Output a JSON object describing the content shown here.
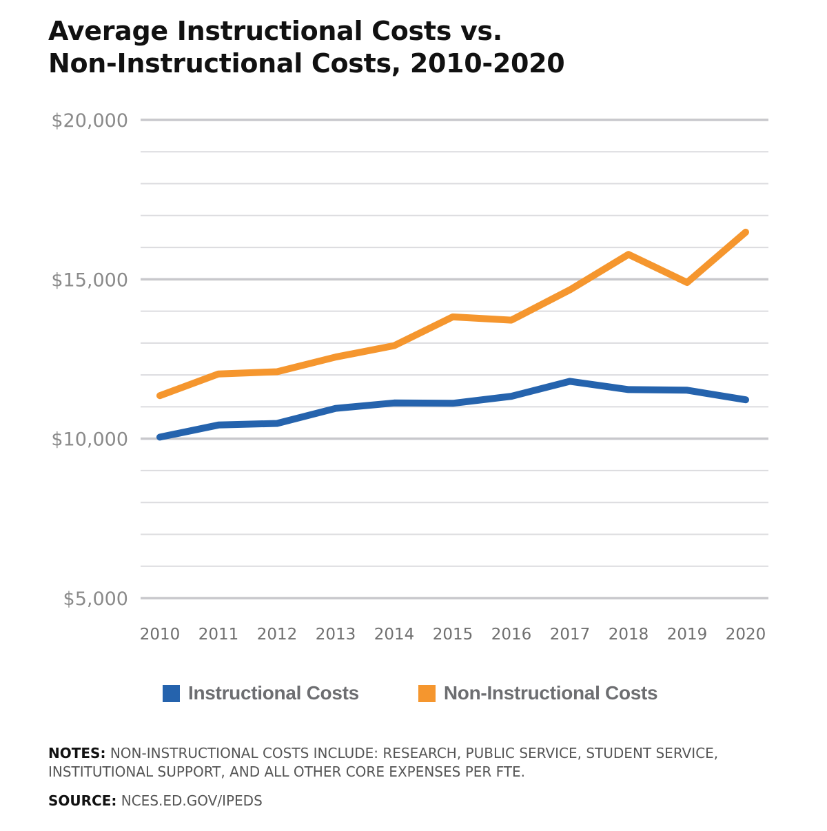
{
  "title_line1": "Average Instructional Costs vs.",
  "title_line2": "Non-Instructional Costs, 2010-2020",
  "colors": {
    "instructional": "#2563ad",
    "non_instructional": "#f5962e",
    "major_grid": "#c8c8cc",
    "minor_grid": "#dcdcdf"
  },
  "chart_data": {
    "type": "line",
    "title": "Average Instructional Costs vs. Non-Instructional Costs, 2010-2020",
    "xlabel": "",
    "ylabel": "",
    "categories": [
      "2010",
      "2011",
      "2012",
      "2013",
      "2014",
      "2015",
      "2016",
      "2017",
      "2018",
      "2019",
      "2020"
    ],
    "series": [
      {
        "name": "Instructional Costs",
        "color": "#2563ad",
        "values": [
          10050,
          10430,
          10480,
          10950,
          11120,
          11110,
          11330,
          11800,
          11540,
          11520,
          11220
        ]
      },
      {
        "name": "Non-Instructional Costs",
        "color": "#f5962e",
        "values": [
          11350,
          12030,
          12100,
          12560,
          12920,
          13820,
          13720,
          14670,
          15780,
          14900,
          16480
        ]
      }
    ],
    "ylim": [
      5000,
      20000
    ],
    "y_major_ticks": [
      5000,
      10000,
      15000,
      20000
    ],
    "y_tick_labels": [
      "$5,000",
      "$10,000",
      "$15,000",
      "$20,000"
    ],
    "y_minor_step": 1000,
    "grid": true,
    "legend_position": "bottom"
  },
  "legend": {
    "instructional": "Instructional Costs",
    "non_instructional": "Non-Instructional Costs"
  },
  "notes": {
    "label": "NOTES:",
    "text": "NON-INSTRUCTIONAL COSTS INCLUDE: RESEARCH, PUBLIC SERVICE, STUDENT SERVICE, INSTITUTIONAL SUPPORT, AND ALL OTHER CORE EXPENSES PER FTE."
  },
  "source": {
    "label": "SOURCE:",
    "text": "NCES.ED.GOV/IPEDS"
  }
}
